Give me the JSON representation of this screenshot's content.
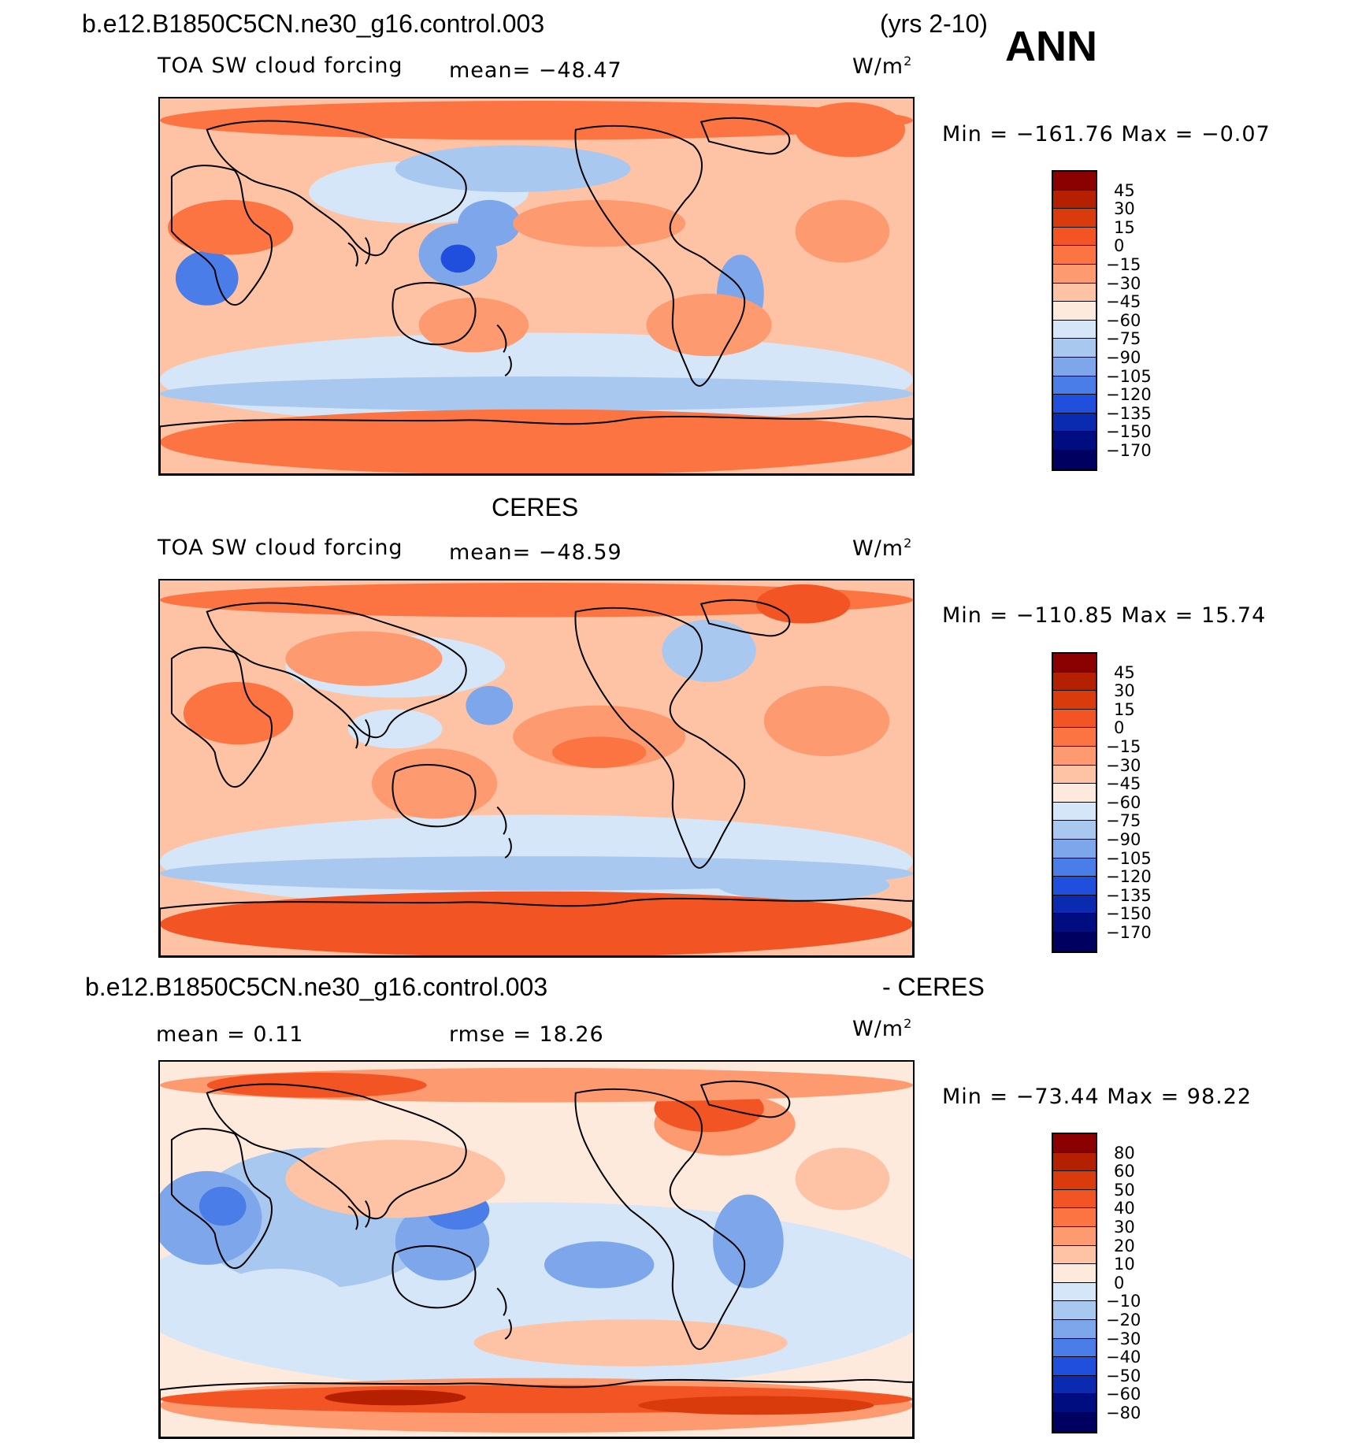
{
  "header": {
    "case_name": "b.e12.B1850C5CN.ne30_g16.control.003",
    "years": "(yrs 2-10)",
    "season": "ANN"
  },
  "panels": [
    {
      "id": "model",
      "heading": "",
      "variable": "TOA SW cloud forcing",
      "stat1": "mean= −48.47",
      "stat2": "",
      "units_base": "W/m",
      "units_exp": "2",
      "minmax": "Min = −161.76 Max =  −0.07"
    },
    {
      "id": "obs",
      "heading": "CERES",
      "variable": "TOA SW cloud forcing",
      "stat1": "mean= −48.59",
      "stat2": "",
      "units_base": "W/m",
      "units_exp": "2",
      "minmax": "Min = −110.85 Max =  15.74"
    },
    {
      "id": "diff",
      "heading_left": "b.e12.B1850C5CN.ne30_g16.control.003",
      "heading_right": "- CERES",
      "variable": "",
      "stat1": "mean =   0.11",
      "stat2": "rmse =  18.26",
      "units_base": "W/m",
      "units_exp": "2",
      "minmax": "Min = −73.44 Max =  98.22"
    }
  ],
  "colorbars": {
    "field": {
      "labels": [
        "45",
        "30",
        "15",
        "0",
        "−15",
        "−30",
        "−45",
        "−60",
        "−75",
        "−90",
        "−105",
        "−120",
        "−135",
        "−150",
        "−170"
      ],
      "colors": [
        "#8b0000",
        "#b52000",
        "#d93b0c",
        "#f25424",
        "#fb7442",
        "#fd9a70",
        "#fec3a5",
        "#feeadc",
        "#d4e6f8",
        "#a9c8f0",
        "#7ea7eb",
        "#4b7de8",
        "#1f4fdc",
        "#0a2ab0",
        "#000d80",
        "#000060"
      ]
    },
    "diff": {
      "labels": [
        "80",
        "60",
        "50",
        "40",
        "30",
        "20",
        "10",
        "0",
        "−10",
        "−20",
        "−30",
        "−40",
        "−50",
        "−60",
        "−80"
      ],
      "colors": [
        "#8b0000",
        "#b52000",
        "#d93b0c",
        "#f25424",
        "#fb7442",
        "#fd9a70",
        "#fec3a5",
        "#feeadc",
        "#d4e6f8",
        "#a9c8f0",
        "#7ea7eb",
        "#4b7de8",
        "#1f4fdc",
        "#0a2ab0",
        "#000d80",
        "#000060"
      ]
    }
  },
  "chart_data": [
    {
      "type": "heatmap",
      "title": "TOA SW cloud forcing",
      "units": "W/m2",
      "mean": -48.47,
      "min": -161.76,
      "max": -0.07,
      "contour_levels": [
        -170,
        -150,
        -135,
        -120,
        -105,
        -90,
        -75,
        -60,
        -45,
        -30,
        -15,
        0,
        15,
        30,
        45
      ]
    },
    {
      "type": "heatmap",
      "title": "TOA SW cloud forcing",
      "units": "W/m2",
      "mean": -48.59,
      "min": -110.85,
      "max": 15.74,
      "contour_levels": [
        -170,
        -150,
        -135,
        -120,
        -105,
        -90,
        -75,
        -60,
        -45,
        -30,
        -15,
        0,
        15,
        30,
        45
      ]
    },
    {
      "type": "heatmap",
      "units": "W/m2",
      "mean": 0.11,
      "rmse": 18.26,
      "min": -73.44,
      "max": 98.22,
      "contour_levels": [
        -80,
        -60,
        -50,
        -40,
        -30,
        -20,
        -10,
        0,
        10,
        20,
        30,
        40,
        50,
        60,
        80
      ]
    }
  ]
}
